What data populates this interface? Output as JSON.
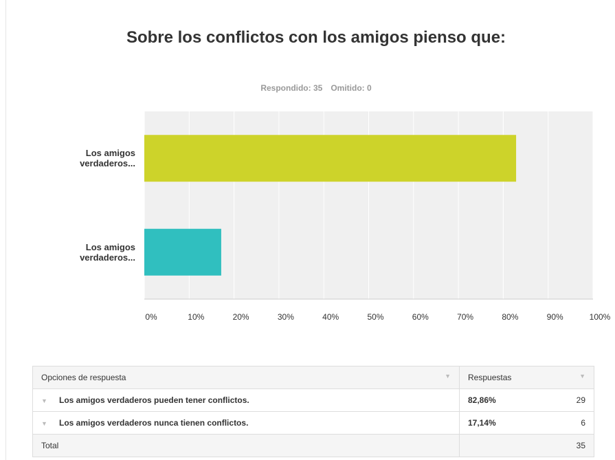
{
  "chart_data": {
    "type": "hbar",
    "title": "Sobre los conflictos con los amigos pienso que:",
    "answered": "Respondido: 35",
    "skipped": "Omitido: 0",
    "categories": [
      "Los amigos verdaderos...",
      "Los amigos verdaderos..."
    ],
    "values": [
      82.86,
      17.14
    ],
    "colors": [
      "#cdd32a",
      "#30bfbf"
    ],
    "xlim": [
      0,
      100
    ],
    "xticks": [
      {
        "value": 0,
        "label": "0%"
      },
      {
        "value": 10,
        "label": "10%"
      },
      {
        "value": 20,
        "label": "20%"
      },
      {
        "value": 30,
        "label": "30%"
      },
      {
        "value": 40,
        "label": "40%"
      },
      {
        "value": 50,
        "label": "50%"
      },
      {
        "value": 60,
        "label": "60%"
      },
      {
        "value": 70,
        "label": "70%"
      },
      {
        "value": 80,
        "label": "80%"
      },
      {
        "value": 90,
        "label": "90%"
      },
      {
        "value": 100,
        "label": "100%"
      }
    ],
    "grid": true
  },
  "table": {
    "header": [
      "Opciones de respuesta",
      "Respuestas"
    ],
    "rows": [
      [
        "Los amigos verdaderos pueden tener conflictos.",
        "82,86%",
        "29"
      ],
      [
        "Los amigos verdaderos nunca tienen conflictos.",
        "17,14%",
        "6"
      ]
    ],
    "total": [
      "Total",
      "35"
    ]
  }
}
